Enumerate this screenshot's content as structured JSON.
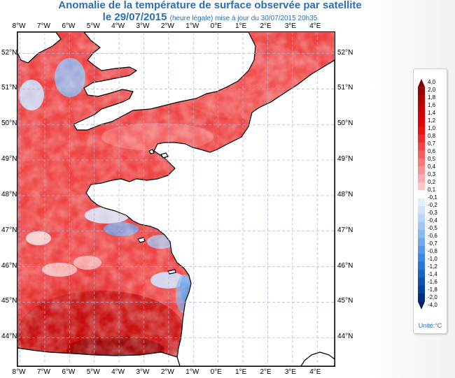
{
  "title": {
    "line1": "Anomalie de la température de surface observée par satellite",
    "date": "le 29/07/2015",
    "note": "(heure légale) mise à jour du 30/07/2015 20h35"
  },
  "map": {
    "lon_labels": [
      "8°W",
      "7°W",
      "6°W",
      "5°W",
      "4°W",
      "3°W",
      "2°W",
      "1°W",
      "0°E",
      "1°E",
      "2°E",
      "3°E",
      "4°E"
    ],
    "lat_labels": [
      "52°N",
      "51°N",
      "50°N",
      "49°N",
      "48°N",
      "47°N",
      "46°N",
      "45°N",
      "44°N"
    ],
    "lon_range": [
      -8.1,
      4.7
    ],
    "lat_range": [
      43.2,
      52.6
    ],
    "anomaly_note_colors": {
      "warm": "#e8232b",
      "cool": "#3d8fe0",
      "land": "#ffffff",
      "coast": "#000000"
    }
  },
  "legend": {
    "ticks": [
      "4,0",
      "2,0",
      "1,8",
      "1,6",
      "1,4",
      "1,2",
      "1,0",
      "0,8",
      "0,7",
      "0,6",
      "0,5",
      "0,4",
      "0,3",
      "0,2",
      "0,1",
      "-0,1",
      "-0,2",
      "-0,3",
      "-0,4",
      "-0,5",
      "-0,6",
      "-0,7",
      "-0,8",
      "-1,0",
      "-1,2",
      "-1,4",
      "-1,6",
      "-1,8",
      "-2,0",
      "-4,0"
    ],
    "colors": [
      "#7a0000",
      "#990000",
      "#b00000",
      "#c40000",
      "#d40000",
      "#e00000",
      "#eb1010",
      "#f02a2a",
      "#f34545",
      "#f55f5f",
      "#f77a7a",
      "#f99393",
      "#fbadad",
      "#fcc6c6",
      "#ffffff",
      "#e2eefc",
      "#cfe2fa",
      "#bad5f8",
      "#a3c7f5",
      "#8ab8f1",
      "#71a8ed",
      "#5898e8",
      "#3f86e2",
      "#2a74d8",
      "#1c62c7",
      "#1050b3",
      "#073f9c",
      "#032e82",
      "#011f66"
    ],
    "unit": "Unité:°C"
  }
}
